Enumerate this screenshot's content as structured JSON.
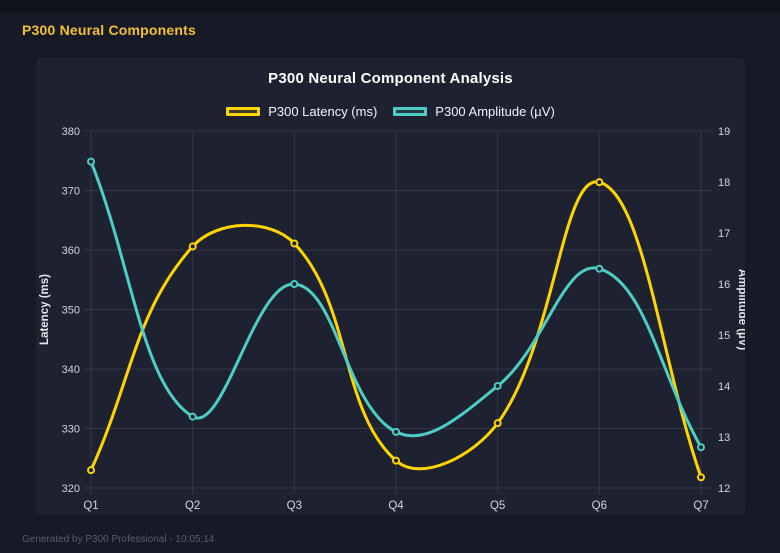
{
  "page": {
    "header_title": "P300 Neural Components",
    "footer": "Generated by P300 Professional - 10:05:14"
  },
  "chart_data": {
    "type": "line",
    "title": "P300 Neural Component Analysis",
    "categories": [
      "Q1",
      "Q2",
      "Q3",
      "Q4",
      "Q5",
      "Q6",
      "Q7"
    ],
    "series": [
      {
        "name": "P300 Latency (ms)",
        "axis": "left",
        "color": "#ffd400",
        "swatch_fill": "rgba(255,212,0,0.16)",
        "values": [
          323.0,
          360.6,
          361.1,
          324.6,
          330.9,
          371.4,
          321.8
        ]
      },
      {
        "name": "P300 Amplitude (µV)",
        "axis": "right",
        "color": "#4ecdc4",
        "swatch_fill": "rgba(78,205,196,0.16)",
        "values": [
          18.4,
          13.4,
          16.0,
          13.1,
          14.0,
          16.3,
          12.8
        ]
      }
    ],
    "y_left": {
      "label": "Latency (ms)",
      "min": 320,
      "max": 380,
      "step": 10
    },
    "y_right": {
      "label": "Amplitude (µV)",
      "min": 12,
      "max": 19,
      "step": 1
    },
    "legend_position": "top",
    "grid": true,
    "curve_tension": 0.4
  },
  "colors": {
    "page_bg": "#171927",
    "titlebar_bg": "#10131c",
    "card_bg": "#1e2130",
    "grid": "rgba(255,255,255,0.09)",
    "tick_text": "#d2d4dc",
    "axis_title_text": "#e4e6ec",
    "title_text": "#ffffff",
    "header_text": "#f2c230",
    "footer_text": "#565b6e"
  }
}
